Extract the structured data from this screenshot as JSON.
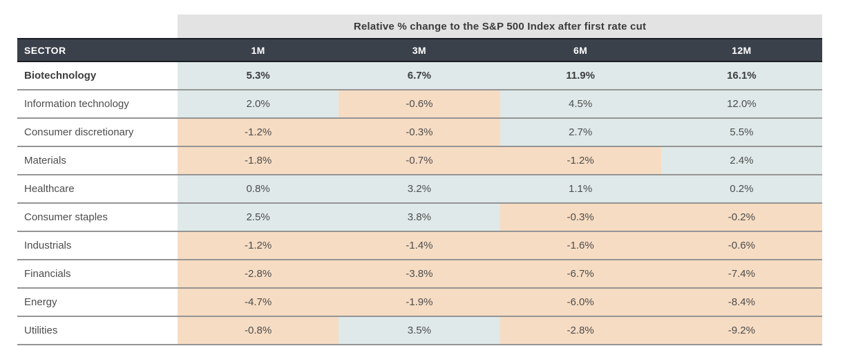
{
  "title": "Relative % change to the S&P 500 Index after first rate cut",
  "columns": {
    "sector": "SECTOR",
    "m1": "1M",
    "m3": "3M",
    "m6": "6M",
    "m12": "12M"
  },
  "rows": [
    {
      "sector": "Biotechnology",
      "emphasis": true,
      "values": [
        "5.3%",
        "6.7%",
        "11.9%",
        "16.1%"
      ]
    },
    {
      "sector": "Information technology",
      "emphasis": false,
      "values": [
        "2.0%",
        "-0.6%",
        "4.5%",
        "12.0%"
      ]
    },
    {
      "sector": "Consumer discretionary",
      "emphasis": false,
      "values": [
        "-1.2%",
        "-0.3%",
        "2.7%",
        "5.5%"
      ]
    },
    {
      "sector": "Materials",
      "emphasis": false,
      "values": [
        "-1.8%",
        "-0.7%",
        "-1.2%",
        "2.4%"
      ]
    },
    {
      "sector": "Healthcare",
      "emphasis": false,
      "values": [
        "0.8%",
        "3.2%",
        "1.1%",
        "0.2%"
      ]
    },
    {
      "sector": "Consumer staples",
      "emphasis": false,
      "values": [
        "2.5%",
        "3.8%",
        "-0.3%",
        "-0.2%"
      ]
    },
    {
      "sector": "Industrials",
      "emphasis": false,
      "values": [
        "-1.2%",
        "-1.4%",
        "-1.6%",
        "-0.6%"
      ]
    },
    {
      "sector": "Financials",
      "emphasis": false,
      "values": [
        "-2.8%",
        "-3.8%",
        "-6.7%",
        "-7.4%"
      ]
    },
    {
      "sector": "Energy",
      "emphasis": false,
      "values": [
        "-4.7%",
        "-1.9%",
        "-6.0%",
        "-8.4%"
      ]
    },
    {
      "sector": "Utilities",
      "emphasis": false,
      "values": [
        "-0.8%",
        "3.5%",
        "-2.8%",
        "-9.2%"
      ]
    }
  ],
  "colors": {
    "positive_cell_bg": "#dfe9e9",
    "negative_cell_bg": "#f6dcc3",
    "header_bg": "#3b414b",
    "header_text": "#ffffff",
    "title_band_bg": "#e3e3e3",
    "row_divider": "#949494"
  },
  "chart_data": {
    "type": "table",
    "title": "Relative % change to the S&P 500 Index after first rate cut",
    "categories": [
      "1M",
      "3M",
      "6M",
      "12M"
    ],
    "series": [
      {
        "name": "Biotechnology",
        "values": [
          5.3,
          6.7,
          11.9,
          16.1
        ]
      },
      {
        "name": "Information technology",
        "values": [
          2.0,
          -0.6,
          4.5,
          12.0
        ]
      },
      {
        "name": "Consumer discretionary",
        "values": [
          -1.2,
          -0.3,
          2.7,
          5.5
        ]
      },
      {
        "name": "Materials",
        "values": [
          -1.8,
          -0.7,
          -1.2,
          2.4
        ]
      },
      {
        "name": "Healthcare",
        "values": [
          0.8,
          3.2,
          1.1,
          0.2
        ]
      },
      {
        "name": "Consumer staples",
        "values": [
          2.5,
          3.8,
          -0.3,
          -0.2
        ]
      },
      {
        "name": "Industrials",
        "values": [
          -1.2,
          -1.4,
          -1.6,
          -0.6
        ]
      },
      {
        "name": "Financials",
        "values": [
          -2.8,
          -3.8,
          -6.7,
          -7.4
        ]
      },
      {
        "name": "Energy",
        "values": [
          -4.7,
          -1.9,
          -6.0,
          -8.4
        ]
      },
      {
        "name": "Utilities",
        "values": [
          -0.8,
          3.5,
          -2.8,
          -9.2
        ]
      }
    ],
    "layout_hints": {
      "color_coding": "positive values light blue (#dfe9e9), negative values peach (#f6dcc3)",
      "unit": "percent",
      "first_row_bold": true
    }
  }
}
